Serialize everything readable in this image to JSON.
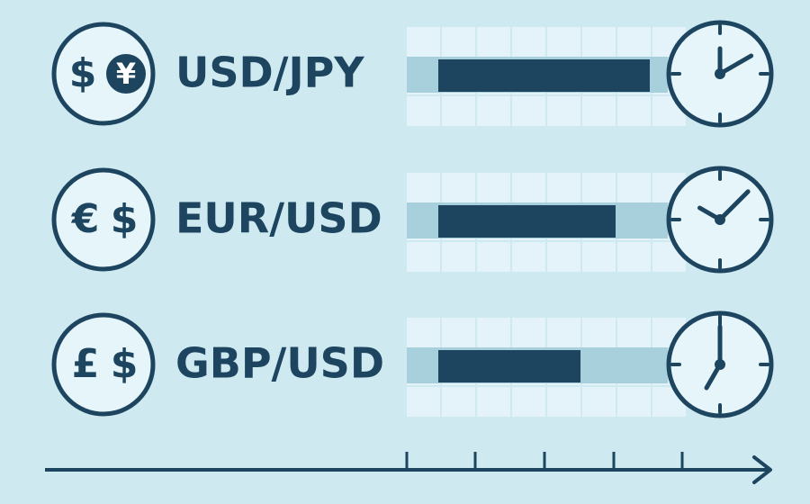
{
  "rows": [
    {
      "pair": "USD/JPY",
      "symbols": [
        "$",
        "¥"
      ]
    },
    {
      "pair": "EUR/USD",
      "symbols": [
        "€",
        "$"
      ]
    },
    {
      "pair": "GBP/USD",
      "symbols": [
        "£",
        "$"
      ]
    }
  ]
}
